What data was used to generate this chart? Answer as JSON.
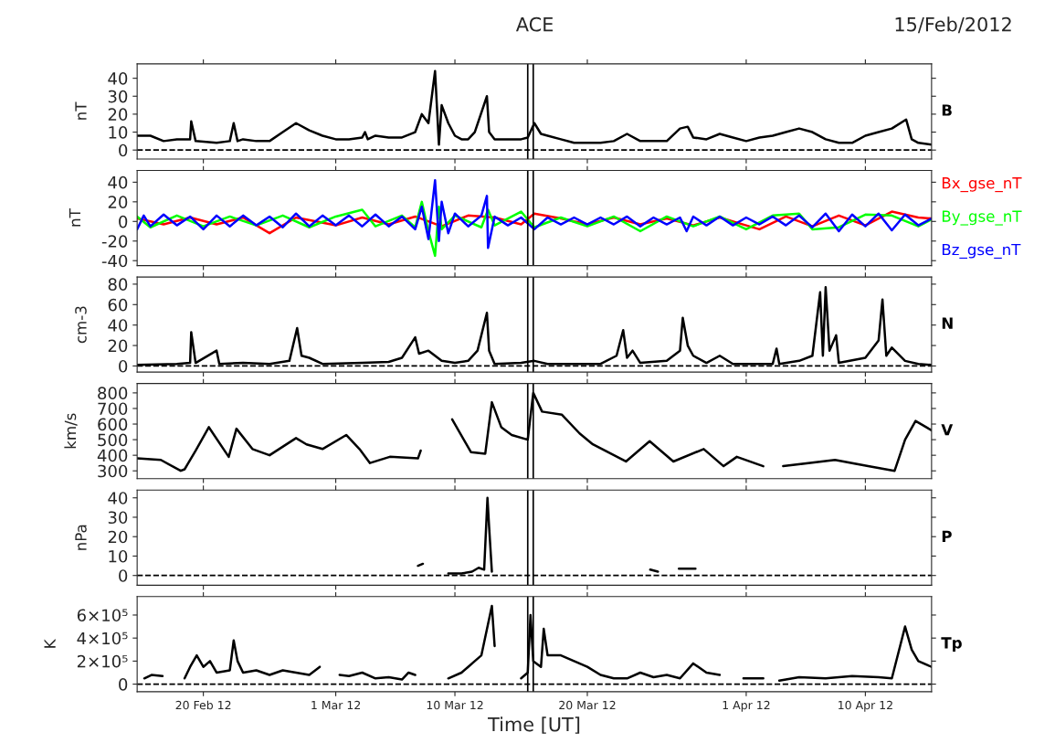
{
  "chart_data": [
    {
      "type": "line",
      "title": "ACE",
      "subtitle": "15/Feb/2012",
      "ylabel": "nT",
      "xlim": [
        "2012-02-15",
        "2012-04-15"
      ],
      "ylim": [
        -5,
        48
      ],
      "yticks": [
        0,
        10,
        20,
        30,
        40
      ],
      "tick_labels": "y",
      "xticks": [
        {
          "value": "2012-02-20",
          "label": null
        },
        {
          "value": "2012-03-01",
          "label": null
        },
        {
          "value": "2012-03-10",
          "label": null
        },
        {
          "value": "2012-03-20",
          "label": null
        },
        {
          "value": "2012-04-01",
          "label": null
        },
        {
          "value": "2012-04-10",
          "label": null
        }
      ],
      "ref_lines": [
        {
          "axis": "y",
          "value": 0,
          "color": "#000000",
          "line_style": "dashed"
        },
        {
          "axis": "x",
          "value": "2012-03-15T12:00",
          "color": "#000000",
          "line_style": "solid"
        },
        {
          "axis": "x",
          "value": "2012-03-15T22:00",
          "color": "#000000",
          "line_style": "solid"
        }
      ],
      "series": [
        {
          "name": "B",
          "color": "#000000",
          "x": [
            "2012-02-15",
            "2012-02-16",
            "2012-02-17",
            "2012-02-18",
            "2012-02-19",
            "2012-02-19T02:00",
            "2012-02-19T10:00",
            "2012-02-21",
            "2012-02-22",
            "2012-02-22T07:00",
            "2012-02-22T14:00",
            "2012-02-23",
            "2012-02-24",
            "2012-02-25",
            "2012-02-26",
            "2012-02-27",
            "2012-02-28",
            "2012-02-29",
            "2012-03-01",
            "2012-03-02",
            "2012-03-03",
            "2012-03-03T05:00",
            "2012-03-03T10:00",
            "2012-03-04",
            "2012-03-05",
            "2012-03-06",
            "2012-03-07",
            "2012-03-07T12:00",
            "2012-03-08",
            "2012-03-08T12:00",
            "2012-03-08T19:00",
            "2012-03-09",
            "2012-03-09T12:00",
            "2012-03-10",
            "2012-03-10T12:00",
            "2012-03-11",
            "2012-03-11T12:00",
            "2012-03-12T10:00",
            "2012-03-12T14:00",
            "2012-03-13",
            "2012-03-14",
            "2012-03-15",
            "2012-03-15T12:00",
            "2012-03-16",
            "2012-03-16T12:00",
            "2012-03-17",
            "2012-03-18",
            "2012-03-19",
            "2012-03-20",
            "2012-03-21",
            "2012-03-22",
            "2012-03-23",
            "2012-03-24",
            "2012-03-25",
            "2012-03-26",
            "2012-03-27",
            "2012-03-27T14:00",
            "2012-03-28",
            "2012-03-29",
            "2012-03-30",
            "2012-03-31",
            "2012-04-01",
            "2012-04-02",
            "2012-04-03",
            "2012-04-04",
            "2012-04-05",
            "2012-04-06",
            "2012-04-07",
            "2012-04-08",
            "2012-04-09",
            "2012-04-10",
            "2012-04-11",
            "2012-04-12",
            "2012-04-13T02:00",
            "2012-04-13T12:00",
            "2012-04-14",
            "2012-04-15"
          ],
          "values": [
            8,
            8,
            5,
            6,
            6,
            16,
            5,
            4,
            5,
            15,
            5,
            6,
            5,
            5,
            10,
            15,
            11,
            8,
            6,
            6,
            7,
            10,
            6,
            8,
            7,
            7,
            10,
            20,
            15,
            44,
            3,
            25,
            15,
            8,
            6,
            6,
            10,
            30,
            10,
            6,
            6,
            6,
            7,
            15,
            9,
            8,
            6,
            4,
            4,
            4,
            5,
            9,
            5,
            5,
            5,
            12,
            13,
            7,
            6,
            9,
            7,
            5,
            7,
            8,
            10,
            12,
            10,
            6,
            4,
            4,
            8,
            10,
            12,
            17,
            6,
            4,
            3
          ]
        }
      ]
    },
    {
      "type": "line",
      "ylabel": "nT",
      "xlim": [
        "2012-02-15",
        "2012-04-15"
      ],
      "ylim": [
        -45,
        52
      ],
      "yticks": [
        -40,
        -20,
        0,
        20,
        40
      ],
      "tick_labels": "y",
      "xticks": [
        {
          "value": "2012-02-20",
          "label": null
        },
        {
          "value": "2012-03-01",
          "label": null
        },
        {
          "value": "2012-03-10",
          "label": null
        },
        {
          "value": "2012-03-20",
          "label": null
        },
        {
          "value": "2012-04-01",
          "label": null
        },
        {
          "value": "2012-04-10",
          "label": null
        }
      ],
      "ref_lines": [
        {
          "axis": "x",
          "value": "2012-03-15T12:00",
          "color": "#000000",
          "line_style": "solid"
        },
        {
          "axis": "x",
          "value": "2012-03-15T22:00",
          "color": "#000000",
          "line_style": "solid"
        }
      ],
      "series": [
        {
          "name": "Bx_gse_nT",
          "color": "#ff0000",
          "x": [
            "2012-02-15",
            "2012-02-17",
            "2012-02-19",
            "2012-02-21",
            "2012-02-23",
            "2012-02-25",
            "2012-02-27",
            "2012-03-01",
            "2012-03-03",
            "2012-03-05",
            "2012-03-07",
            "2012-03-09",
            "2012-03-11",
            "2012-03-13",
            "2012-03-15",
            "2012-03-16",
            "2012-03-18",
            "2012-03-20",
            "2012-03-22",
            "2012-03-24",
            "2012-03-26",
            "2012-03-28",
            "2012-03-30",
            "2012-04-01",
            "2012-04-02",
            "2012-04-04",
            "2012-04-06",
            "2012-04-08",
            "2012-04-10",
            "2012-04-12",
            "2012-04-14",
            "2012-04-15"
          ],
          "values": [
            3,
            -3,
            4,
            -3,
            4,
            -12,
            4,
            -4,
            4,
            -3,
            5,
            -5,
            6,
            4,
            -3,
            8,
            3,
            -3,
            4,
            -3,
            3,
            -4,
            4,
            -4,
            -8,
            5,
            -5,
            6,
            -4,
            10,
            4,
            3
          ]
        },
        {
          "name": "By_gse_nT",
          "color": "#00ff00",
          "x": [
            "2012-02-15",
            "2012-02-16",
            "2012-02-18",
            "2012-02-20",
            "2012-02-22",
            "2012-02-24",
            "2012-02-26",
            "2012-02-28",
            "2012-03-01",
            "2012-03-03",
            "2012-03-04",
            "2012-03-06",
            "2012-03-07",
            "2012-03-07T12:00",
            "2012-03-08",
            "2012-03-08T12:00",
            "2012-03-08T19:00",
            "2012-03-09",
            "2012-03-10",
            "2012-03-12",
            "2012-03-12T12:00",
            "2012-03-13",
            "2012-03-15",
            "2012-03-16",
            "2012-03-18",
            "2012-03-20",
            "2012-03-22",
            "2012-03-24",
            "2012-03-26",
            "2012-03-28",
            "2012-03-30",
            "2012-04-01",
            "2012-04-03",
            "2012-04-05",
            "2012-04-06",
            "2012-04-08",
            "2012-04-10",
            "2012-04-12",
            "2012-04-14",
            "2012-04-15"
          ],
          "values": [
            5,
            -6,
            6,
            -5,
            5,
            -4,
            6,
            -6,
            5,
            12,
            -5,
            6,
            -6,
            20,
            -10,
            -35,
            15,
            -8,
            6,
            -6,
            12,
            -4,
            10,
            -6,
            4,
            -5,
            5,
            -10,
            5,
            -5,
            5,
            -8,
            6,
            8,
            -8,
            -6,
            7,
            6,
            -5,
            2
          ]
        },
        {
          "name": "Bz_gse_nT",
          "color": "#0000ff",
          "x": [
            "2012-02-15",
            "2012-02-15T12:00",
            "2012-02-16",
            "2012-02-17",
            "2012-02-18",
            "2012-02-19",
            "2012-02-20",
            "2012-02-21",
            "2012-02-22",
            "2012-02-23",
            "2012-02-24",
            "2012-02-25",
            "2012-02-26",
            "2012-02-27",
            "2012-02-28",
            "2012-02-29",
            "2012-03-01",
            "2012-03-02",
            "2012-03-03",
            "2012-03-04",
            "2012-03-05",
            "2012-03-06",
            "2012-03-07",
            "2012-03-07T12:00",
            "2012-03-08",
            "2012-03-08T12:00",
            "2012-03-08T19:00",
            "2012-03-09",
            "2012-03-09T12:00",
            "2012-03-10",
            "2012-03-11",
            "2012-03-12",
            "2012-03-12T10:00",
            "2012-03-12T12:00",
            "2012-03-13",
            "2012-03-14",
            "2012-03-15",
            "2012-03-16",
            "2012-03-17",
            "2012-03-18",
            "2012-03-19",
            "2012-03-20",
            "2012-03-21",
            "2012-03-22",
            "2012-03-23",
            "2012-03-24",
            "2012-03-25",
            "2012-03-26",
            "2012-03-27",
            "2012-03-27T12:00",
            "2012-03-28",
            "2012-03-29",
            "2012-03-30",
            "2012-03-31",
            "2012-04-01",
            "2012-04-02",
            "2012-04-03",
            "2012-04-04",
            "2012-04-05",
            "2012-04-06",
            "2012-04-07",
            "2012-04-08",
            "2012-04-09",
            "2012-04-10",
            "2012-04-11",
            "2012-04-12",
            "2012-04-13",
            "2012-04-14",
            "2012-04-15"
          ],
          "values": [
            -8,
            6,
            -5,
            7,
            -4,
            5,
            -8,
            6,
            -5,
            6,
            -4,
            5,
            -6,
            8,
            -5,
            6,
            -4,
            6,
            -5,
            7,
            -5,
            5,
            -8,
            15,
            -18,
            42,
            -20,
            20,
            -12,
            8,
            -5,
            6,
            26,
            -27,
            5,
            -4,
            4,
            -8,
            4,
            -3,
            4,
            -3,
            4,
            -3,
            5,
            -5,
            4,
            -3,
            4,
            -10,
            5,
            -4,
            5,
            -4,
            4,
            -3,
            5,
            -4,
            6,
            -6,
            8,
            -10,
            7,
            -5,
            8,
            -9,
            7,
            -4,
            3
          ]
        }
      ]
    },
    {
      "type": "line",
      "ylabel": "cm-3",
      "xlim": [
        "2012-02-15",
        "2012-04-15"
      ],
      "ylim": [
        -6,
        87
      ],
      "yticks": [
        0,
        20,
        40,
        60,
        80
      ],
      "tick_labels": "y",
      "xticks": [
        {
          "value": "2012-02-20",
          "label": null
        },
        {
          "value": "2012-03-01",
          "label": null
        },
        {
          "value": "2012-03-10",
          "label": null
        },
        {
          "value": "2012-03-20",
          "label": null
        },
        {
          "value": "2012-04-01",
          "label": null
        },
        {
          "value": "2012-04-10",
          "label": null
        }
      ],
      "ref_lines": [
        {
          "axis": "y",
          "value": 0,
          "color": "#000000",
          "line_style": "dashed"
        },
        {
          "axis": "x",
          "value": "2012-03-15T12:00",
          "color": "#000000",
          "line_style": "solid"
        },
        {
          "axis": "x",
          "value": "2012-03-15T22:00",
          "color": "#000000",
          "line_style": "solid"
        }
      ],
      "series": [
        {
          "name": "N",
          "color": "#000000",
          "x": [
            "2012-02-15",
            "2012-02-18",
            "2012-02-19",
            "2012-02-19T02:00",
            "2012-02-19T10:00",
            "2012-02-21",
            "2012-02-21T05:00",
            "2012-02-23",
            "2012-02-25",
            "2012-02-26T12:00",
            "2012-02-27T02:00",
            "2012-02-27T10:00",
            "2012-02-28",
            "2012-02-29",
            "2012-03-03",
            "2012-03-05",
            "2012-03-06",
            "2012-03-07",
            "2012-03-07T07:00",
            "2012-03-08",
            "2012-03-09",
            "2012-03-10",
            "2012-03-11",
            "2012-03-11T17:00",
            "2012-03-12T10:00",
            "2012-03-12T14:00",
            "2012-03-13",
            "2012-03-15",
            "2012-03-16",
            "2012-03-17",
            "2012-03-21",
            "2012-03-22T05:00",
            "2012-03-22T17:00",
            "2012-03-23",
            "2012-03-23T10:00",
            "2012-03-24",
            "2012-03-26",
            "2012-03-27",
            "2012-03-27T05:00",
            "2012-03-27T14:00",
            "2012-03-28",
            "2012-03-29",
            "2012-03-30",
            "2012-03-31",
            "2012-04-03",
            "2012-04-03T07:00",
            "2012-04-03T12:00",
            "2012-04-05",
            "2012-04-06",
            "2012-04-06T14:00",
            "2012-04-06T19:00",
            "2012-04-07",
            "2012-04-07T07:00",
            "2012-04-07T19:00",
            "2012-04-08",
            "2012-04-10",
            "2012-04-11",
            "2012-04-11T07:00",
            "2012-04-11T14:00",
            "2012-04-12",
            "2012-04-13",
            "2012-04-14",
            "2012-04-15"
          ],
          "values": [
            1,
            2,
            3,
            33,
            3,
            15,
            2,
            3,
            2,
            5,
            37,
            10,
            8,
            2,
            3,
            4,
            8,
            28,
            12,
            15,
            5,
            3,
            5,
            15,
            52,
            15,
            2,
            3,
            5,
            2,
            2,
            10,
            35,
            8,
            15,
            3,
            5,
            15,
            47,
            20,
            10,
            3,
            10,
            2,
            2,
            17,
            2,
            5,
            10,
            72,
            10,
            77,
            15,
            30,
            3,
            8,
            25,
            65,
            10,
            18,
            5,
            2,
            1
          ]
        }
      ]
    },
    {
      "type": "line",
      "ylabel": "km/s",
      "xlim": [
        "2012-02-15",
        "2012-04-15"
      ],
      "ylim": [
        250,
        860
      ],
      "yticks": [
        300,
        400,
        500,
        600,
        700,
        800
      ],
      "tick_labels": "y",
      "xticks": [
        {
          "value": "2012-02-20",
          "label": null
        },
        {
          "value": "2012-03-01",
          "label": null
        },
        {
          "value": "2012-03-10",
          "label": null
        },
        {
          "value": "2012-03-20",
          "label": null
        },
        {
          "value": "2012-04-01",
          "label": null
        },
        {
          "value": "2012-04-10",
          "label": null
        }
      ],
      "ref_lines": [
        {
          "axis": "x",
          "value": "2012-03-15T12:00",
          "color": "#000000",
          "line_style": "solid"
        },
        {
          "axis": "x",
          "value": "2012-03-15T22:00",
          "color": "#000000",
          "line_style": "solid"
        }
      ],
      "series": [
        {
          "name": "V",
          "color": "#000000",
          "x": [
            "2012-02-15",
            "2012-02-16T19:00",
            "2012-02-18T07:00",
            "2012-02-18T14:00",
            "2012-02-19T10:00",
            "2012-02-20T10:00",
            "2012-02-21T22:00",
            "2012-02-22T12:00",
            "2012-02-23T17:00",
            "2012-02-25",
            "2012-02-27",
            "2012-02-27T19:00",
            "2012-02-29",
            "2012-03-01T19:00",
            "2012-03-02T19:00",
            "2012-03-03T14:00",
            "2012-03-05T02:00",
            "2012-03-07T05:00",
            "2012-03-07T10:00",
            "2012-03-08",
            "2012-03-09T19:00",
            "2012-03-11T05:00",
            "2012-03-12T07:00",
            "2012-03-12T19:00",
            "2012-03-13T12:00",
            "2012-03-14T07:00",
            "2012-03-15T12:00",
            "2012-03-15T22:00",
            "2012-03-16T14:00",
            "2012-03-18T02:00",
            "2012-03-19T10:00",
            "2012-03-20T10:00",
            "2012-03-22T22:00",
            "2012-03-24T17:00",
            "2012-03-26T12:00",
            "2012-03-28T19:00",
            "2012-03-30T07:00",
            "2012-03-31T07:00",
            "2012-04-02T07:00",
            "2012-04-03",
            "2012-04-03T19:00",
            "2012-04-07T17:00",
            "2012-04-10T05:00",
            "2012-04-12T05:00",
            "2012-04-13",
            "2012-04-13T19:00",
            "2012-04-15"
          ],
          "values": [
            380,
            370,
            300,
            310,
            430,
            580,
            390,
            570,
            440,
            400,
            510,
            470,
            440,
            530,
            440,
            350,
            390,
            380,
            430,
            null,
            630,
            420,
            410,
            740,
            580,
            530,
            500,
            800,
            680,
            660,
            540,
            470,
            360,
            490,
            360,
            440,
            330,
            390,
            330,
            null,
            330,
            370,
            330,
            300,
            500,
            620,
            560
          ]
        }
      ]
    },
    {
      "type": "line",
      "ylabel": "nPa",
      "xlim": [
        "2012-02-15",
        "2012-04-15"
      ],
      "ylim": [
        -5,
        44
      ],
      "yticks": [
        0,
        10,
        20,
        30,
        40
      ],
      "tick_labels": "y",
      "xticks": [
        {
          "value": "2012-02-20",
          "label": null
        },
        {
          "value": "2012-03-01",
          "label": null
        },
        {
          "value": "2012-03-10",
          "label": null
        },
        {
          "value": "2012-03-20",
          "label": null
        },
        {
          "value": "2012-04-01",
          "label": null
        },
        {
          "value": "2012-04-10",
          "label": null
        }
      ],
      "ref_lines": [
        {
          "axis": "y",
          "value": 0,
          "color": "#000000",
          "line_style": "dashed"
        },
        {
          "axis": "x",
          "value": "2012-03-15T12:00",
          "color": "#000000",
          "line_style": "solid"
        },
        {
          "axis": "x",
          "value": "2012-03-15T22:00",
          "color": "#000000",
          "line_style": "solid"
        }
      ],
      "series": [
        {
          "name": "P",
          "color": "#000000",
          "x": [
            "2012-03-07T05:00",
            "2012-03-07T14:00",
            "2012-03-08",
            "2012-03-09T12:00",
            "2012-03-10T12:00",
            "2012-03-11T07:00",
            "2012-03-11T19:00",
            "2012-03-12T05:00",
            "2012-03-12T11:00",
            "2012-03-12T14:00",
            "2012-03-12T19:00",
            "2012-03-13",
            "2012-03-24T18:00",
            "2012-03-25T08:00",
            "2012-03-25T12:00",
            "2012-03-26T22:00",
            "2012-03-28T04:00"
          ],
          "values": [
            5,
            6,
            null,
            1,
            1,
            2,
            4,
            3,
            40,
            25,
            2,
            null,
            3,
            2,
            null,
            3.5,
            3.5
          ]
        }
      ]
    },
    {
      "type": "line",
      "ylabel": "K",
      "xlabel": "Time [UT]",
      "xlim": [
        "2012-02-15",
        "2012-04-15"
      ],
      "ylim": [
        -66000,
        760000
      ],
      "yticks": [
        0,
        {
          "value": 200000,
          "label": "2×10⁵"
        },
        {
          "value": 400000,
          "label": "4×10⁵"
        },
        {
          "value": 600000,
          "label": "6×10⁵"
        }
      ],
      "xticks": [
        {
          "value": "2012-02-20",
          "label": "20 Feb 12"
        },
        {
          "value": "2012-03-01",
          "label": "1 Mar 12"
        },
        {
          "value": "2012-03-10",
          "label": "10 Mar 12"
        },
        {
          "value": "2012-03-20",
          "label": "20 Mar 12"
        },
        {
          "value": "2012-04-01",
          "label": "1 Apr 12"
        },
        {
          "value": "2012-04-10",
          "label": "10 Apr 12"
        }
      ],
      "ref_lines": [
        {
          "axis": "y",
          "value": 0,
          "color": "#000000",
          "line_style": "dashed"
        },
        {
          "axis": "x",
          "value": "2012-03-15T12:00",
          "color": "#000000",
          "line_style": "solid"
        },
        {
          "axis": "x",
          "value": "2012-03-15T22:00",
          "color": "#000000",
          "line_style": "solid"
        }
      ],
      "series": [
        {
          "name": "Tp",
          "color": "#000000",
          "x": [
            "2012-02-15T13:00",
            "2012-02-16T02:00",
            "2012-02-16T22:00",
            "2012-02-17T07:00",
            "2012-02-18T14:00",
            "2012-02-19",
            "2012-02-19T12:00",
            "2012-02-20",
            "2012-02-20T12:00",
            "2012-02-21",
            "2012-02-22",
            "2012-02-22T07:00",
            "2012-02-22T14:00",
            "2012-02-23",
            "2012-02-24",
            "2012-02-25",
            "2012-02-26",
            "2012-02-27",
            "2012-02-28",
            "2012-02-28T19:00",
            "2012-02-29T05:00",
            "2012-03-01T07:00",
            "2012-03-02",
            "2012-03-03",
            "2012-03-04",
            "2012-03-05",
            "2012-03-06",
            "2012-03-06T12:00",
            "2012-03-07",
            "2012-03-07T12:00",
            "2012-03-09T12:00",
            "2012-03-10T12:00",
            "2012-03-11",
            "2012-03-11T12:00",
            "2012-03-12",
            "2012-03-12T19:00",
            "2012-03-13",
            "2012-03-13T12:00",
            "2012-03-15",
            "2012-03-15T12:00",
            "2012-03-15T17:00",
            "2012-03-15T22:00",
            "2012-03-16T12:00",
            "2012-03-16T17:00",
            "2012-03-17",
            "2012-03-18",
            "2012-03-19",
            "2012-03-20",
            "2012-03-21",
            "2012-03-22",
            "2012-03-23",
            "2012-03-24",
            "2012-03-25",
            "2012-03-26",
            "2012-03-27",
            "2012-03-28",
            "2012-03-29",
            "2012-03-30",
            "2012-03-30T12:00",
            "2012-03-31T19:00",
            "2012-04-02T07:00",
            "2012-04-02T19:00",
            "2012-04-03T12:00",
            "2012-04-05",
            "2012-04-07",
            "2012-04-09",
            "2012-04-11",
            "2012-04-12",
            "2012-04-13",
            "2012-04-13T12:00",
            "2012-04-14",
            "2012-04-15"
          ],
          "values": [
            50000,
            80000,
            70000,
            null,
            50000,
            150000,
            250000,
            150000,
            200000,
            100000,
            120000,
            380000,
            200000,
            100000,
            120000,
            80000,
            120000,
            100000,
            80000,
            150000,
            null,
            80000,
            70000,
            100000,
            50000,
            60000,
            40000,
            100000,
            80000,
            null,
            50000,
            100000,
            150000,
            200000,
            250000,
            680000,
            330000,
            null,
            50000,
            100000,
            600000,
            200000,
            150000,
            480000,
            250000,
            250000,
            200000,
            150000,
            80000,
            50000,
            50000,
            100000,
            60000,
            80000,
            50000,
            180000,
            100000,
            80000,
            null,
            50000,
            50000,
            null,
            30000,
            60000,
            50000,
            70000,
            60000,
            50000,
            500000,
            300000,
            200000,
            150000
          ]
        }
      ]
    }
  ]
}
